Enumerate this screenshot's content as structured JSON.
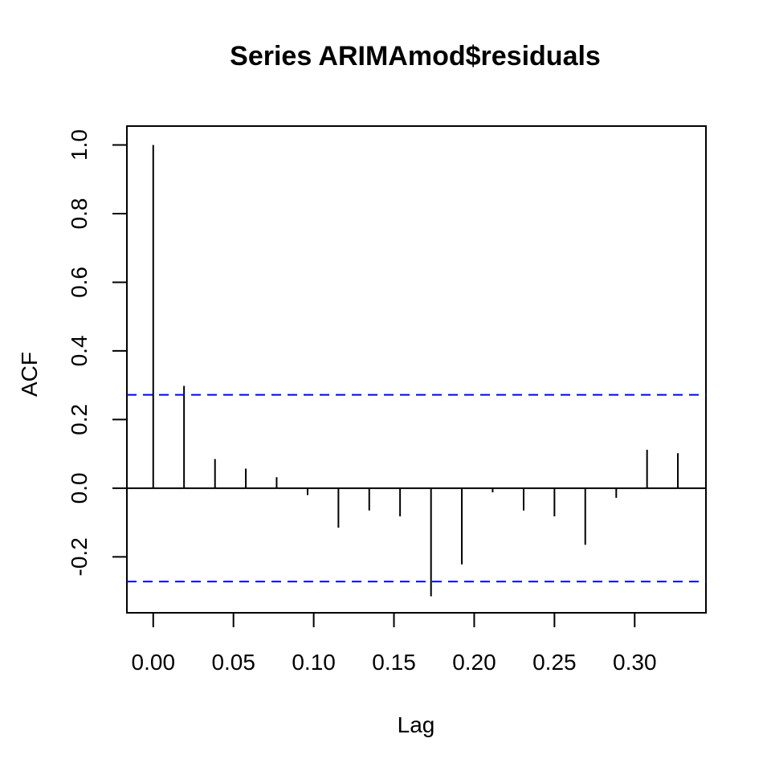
{
  "chart_data": {
    "type": "bar",
    "title": "Series  ARIMAmod$residuals",
    "xlabel": "Lag",
    "ylabel": "ACF",
    "xlim": [
      -0.0164,
      0.3444
    ],
    "ylim": [
      -0.363,
      1.055
    ],
    "x_ticks": [
      0.0,
      0.05,
      0.1,
      0.15,
      0.2,
      0.25,
      0.3
    ],
    "x_tick_labels": [
      "0.00",
      "0.05",
      "0.10",
      "0.15",
      "0.20",
      "0.25",
      "0.30"
    ],
    "y_ticks": [
      -0.2,
      0.0,
      0.2,
      0.4,
      0.6,
      0.8,
      1.0
    ],
    "y_tick_labels": [
      "-0.2",
      "0.0",
      "0.2",
      "0.4",
      "0.6",
      "0.8",
      "1.0"
    ],
    "lags": [
      0.0,
      0.0192,
      0.0385,
      0.0577,
      0.0769,
      0.0962,
      0.1154,
      0.1346,
      0.1538,
      0.1731,
      0.1923,
      0.2115,
      0.2308,
      0.25,
      0.2692,
      0.2885,
      0.3077,
      0.3269
    ],
    "values": [
      1.0,
      0.298,
      0.085,
      0.057,
      0.032,
      -0.02,
      -0.115,
      -0.065,
      -0.082,
      -0.315,
      -0.222,
      -0.012,
      -0.065,
      -0.082,
      -0.165,
      -0.028,
      0.112,
      0.102
    ],
    "confidence_bound": 0.272,
    "zero_line": true,
    "colors": {
      "bars": "#000000",
      "confidence": "#0000ff",
      "frame": "#000000"
    }
  }
}
